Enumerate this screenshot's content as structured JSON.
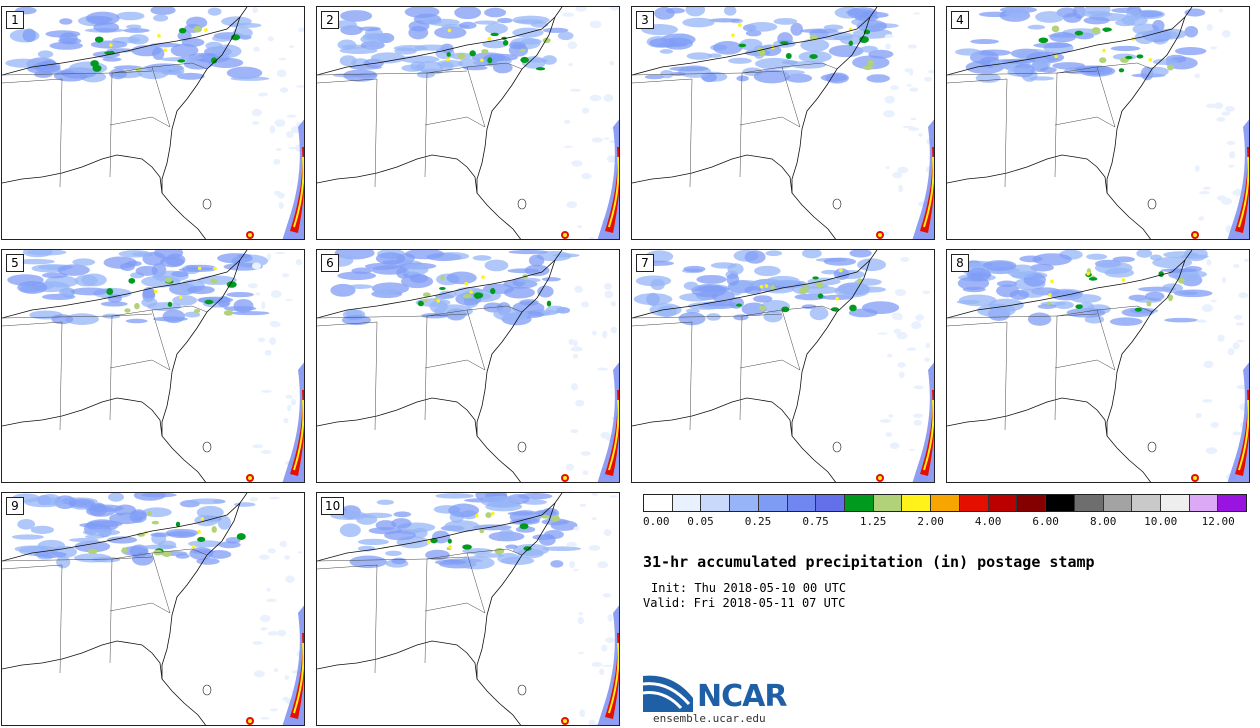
{
  "members": [
    "1",
    "2",
    "3",
    "4",
    "5",
    "6",
    "7",
    "8",
    "9",
    "10"
  ],
  "colorbar": {
    "colors": [
      "#ffffff",
      "#e8f1fd",
      "#c9d9fb",
      "#96b4f7",
      "#7f9cf5",
      "#7086f1",
      "#6470ea",
      "#009a1e",
      "#b2d27a",
      "#fff21a",
      "#f7a500",
      "#e50f00",
      "#bc0000",
      "#840000",
      "#000000",
      "#6e6e6e",
      "#a3a3a3",
      "#c9c9c9",
      "#eeeeee",
      "#dca9f7",
      "#9a14e1"
    ],
    "tick_labels": [
      "0.00",
      "0.05",
      "0.25",
      "0.75",
      "1.25",
      "2.00",
      "4.00",
      "6.00",
      "8.00",
      "10.00",
      "12.00"
    ]
  },
  "title": "31-hr accumulated precipitation (in) postage stamp",
  "init_text": "Init: Thu 2018-05-10 00 UTC",
  "valid_text": "Valid: Fri 2018-05-11 07 UTC",
  "logo": {
    "wordmark": "NCAR",
    "url": "ensemble.ucar.edu"
  }
}
